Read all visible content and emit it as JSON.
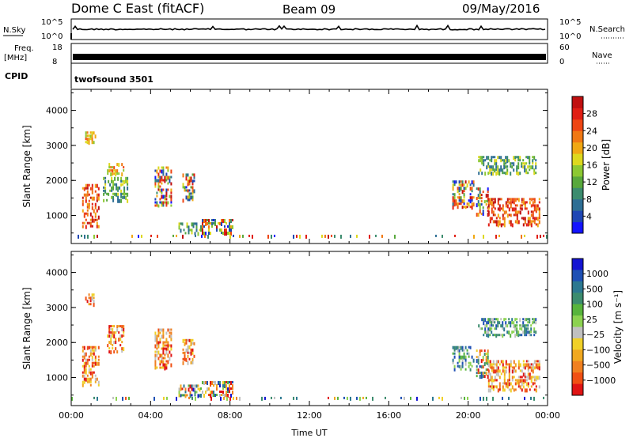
{
  "header": {
    "station": "Dome C East (fitACF)",
    "beam": "Beam 09",
    "date": "09/May/2016"
  },
  "strips": {
    "nsky_label": "N.Sky",
    "nsearch_label": "N.Search",
    "noise_top": "10^5",
    "noise_bottom": "10^0",
    "noise_right_top": "10^5",
    "noise_right_bottom": "10^0",
    "freq_label": "Freq.",
    "freq_unit": "[MHz]",
    "freq_top": "18",
    "freq_bottom": "8",
    "nave_label": "Nave",
    "nave_top": "60",
    "nave_bottom": "0",
    "cpid_label": "CPID",
    "cpid_value": "twofsound 3501"
  },
  "chart_data": [
    {
      "type": "heatmap",
      "name": "power",
      "ylabel": "Slant Range [km]",
      "ylim": [
        200,
        4600
      ],
      "yticks": [
        "1000",
        "2000",
        "3000",
        "4000"
      ],
      "xlim": [
        0,
        24
      ],
      "colorbar": {
        "label": "Power [dB]",
        "ticks": [
          "4",
          "8",
          "12",
          "16",
          "20",
          "24",
          "28"
        ],
        "colors": [
          "#1414ff",
          "#1e46b4",
          "#2e6e94",
          "#3c8c6e",
          "#58a83c",
          "#8cc832",
          "#ddd81e",
          "#f0a814",
          "#f07814",
          "#ee4614",
          "#e01e14",
          "#c01010"
        ],
        "range": [
          0,
          30
        ]
      },
      "patches": [
        {
          "t": [
            0.55,
            1.35
          ],
          "r": [
            700,
            1900
          ],
          "level": "high"
        },
        {
          "t": [
            0.7,
            1.2
          ],
          "r": [
            3050,
            3400
          ],
          "level": "mid"
        },
        {
          "t": [
            1.8,
            2.6
          ],
          "r": [
            2200,
            2500
          ],
          "level": "mid"
        },
        {
          "t": [
            1.6,
            2.8
          ],
          "r": [
            1400,
            2100
          ],
          "level": "low"
        },
        {
          "t": [
            4.2,
            5.0
          ],
          "r": [
            1300,
            2400
          ],
          "level": "mixed"
        },
        {
          "t": [
            5.6,
            6.2
          ],
          "r": [
            1400,
            2200
          ],
          "level": "mixed"
        },
        {
          "t": [
            5.4,
            6.5
          ],
          "r": [
            500,
            800
          ],
          "level": "low"
        },
        {
          "t": [
            6.5,
            8.1
          ],
          "r": [
            450,
            900
          ],
          "level": "mixed"
        },
        {
          "t": [
            19.2,
            20.3
          ],
          "r": [
            1200,
            2000
          ],
          "level": "mixed"
        },
        {
          "t": [
            20.4,
            21.0
          ],
          "r": [
            1000,
            1800
          ],
          "level": "mixed"
        },
        {
          "t": [
            21.0,
            23.6
          ],
          "r": [
            700,
            1500
          ],
          "level": "high"
        },
        {
          "t": [
            20.5,
            23.4
          ],
          "r": [
            2200,
            2700
          ],
          "level": "low"
        },
        {
          "t": [
            0.0,
            24.0
          ],
          "r": [
            250,
            450
          ],
          "level": "sparse"
        }
      ]
    },
    {
      "type": "heatmap",
      "name": "velocity",
      "ylabel": "Slant Range [km]",
      "ylim": [
        200,
        4600
      ],
      "yticks": [
        "1000",
        "2000",
        "3000",
        "4000"
      ],
      "xlim": [
        0,
        24
      ],
      "xticks": [
        "00:00",
        "04:00",
        "08:00",
        "12:00",
        "16:00",
        "20:00",
        "00:00"
      ],
      "xlabel": "Time UT",
      "colorbar": {
        "label": "Velocity [m s⁻¹]",
        "ticks": [
          "1000",
          "500",
          "100",
          "25",
          "−25",
          "−100",
          "−500",
          "−1000"
        ],
        "colors": [
          "#1414d2",
          "#1e50b4",
          "#2c7890",
          "#3c8c6e",
          "#58b43c",
          "#8cd250",
          "#c0c0c0",
          "#f0d028",
          "#f0a820",
          "#f08020",
          "#f05014",
          "#e01414"
        ]
      },
      "patches": [
        {
          "t": [
            0.55,
            1.35
          ],
          "r": [
            800,
            1900
          ],
          "level": "neg"
        },
        {
          "t": [
            0.7,
            1.2
          ],
          "r": [
            3050,
            3400
          ],
          "level": "neg"
        },
        {
          "t": [
            1.8,
            2.6
          ],
          "r": [
            1700,
            2500
          ],
          "level": "neg"
        },
        {
          "t": [
            4.2,
            5.0
          ],
          "r": [
            1300,
            2400
          ],
          "level": "neg"
        },
        {
          "t": [
            5.6,
            6.2
          ],
          "r": [
            1400,
            2100
          ],
          "level": "neg"
        },
        {
          "t": [
            5.4,
            6.5
          ],
          "r": [
            500,
            800
          ],
          "level": "mixed"
        },
        {
          "t": [
            6.5,
            8.1
          ],
          "r": [
            450,
            900
          ],
          "level": "mixed"
        },
        {
          "t": [
            19.2,
            20.3
          ],
          "r": [
            1200,
            1900
          ],
          "level": "pos"
        },
        {
          "t": [
            20.4,
            21.0
          ],
          "r": [
            1000,
            1800
          ],
          "level": "mixed"
        },
        {
          "t": [
            21.0,
            23.6
          ],
          "r": [
            650,
            1500
          ],
          "level": "neg"
        },
        {
          "t": [
            20.5,
            23.4
          ],
          "r": [
            2200,
            2700
          ],
          "level": "pos"
        },
        {
          "t": [
            0.0,
            24.0
          ],
          "r": [
            250,
            450
          ],
          "level": "sparse"
        }
      ]
    }
  ]
}
